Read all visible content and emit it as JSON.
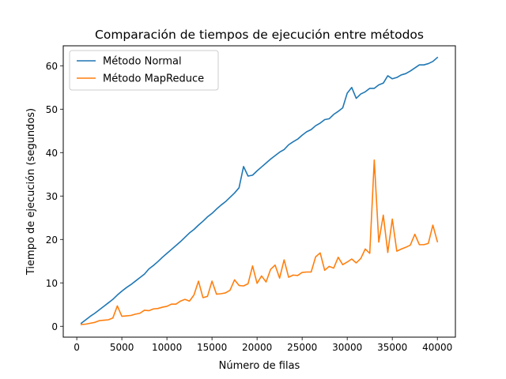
{
  "chart_data": {
    "type": "line",
    "title": "Comparación de tiempos de ejecución entre métodos",
    "xlabel": "Número de filas",
    "ylabel": "Tiempo de ejecución (segundos)",
    "xlim": [
      -1500,
      42000
    ],
    "ylim": [
      -2.5,
      64.6
    ],
    "xticks": [
      0,
      5000,
      10000,
      15000,
      20000,
      25000,
      30000,
      35000,
      40000
    ],
    "yticks": [
      0,
      10,
      20,
      30,
      40,
      50,
      60
    ],
    "legend_position": "upper left",
    "grid": false,
    "series": [
      {
        "name": "Método Normal",
        "color": "#1f77b4",
        "points": [
          [
            500,
            0.7
          ],
          [
            1000,
            1.5
          ],
          [
            1500,
            2.3
          ],
          [
            2000,
            3.0
          ],
          [
            2500,
            3.8
          ],
          [
            3000,
            4.6
          ],
          [
            3500,
            5.4
          ],
          [
            4000,
            6.2
          ],
          [
            4500,
            7.2
          ],
          [
            5000,
            8.1
          ],
          [
            5500,
            8.9
          ],
          [
            6000,
            9.6
          ],
          [
            6500,
            10.4
          ],
          [
            7000,
            11.2
          ],
          [
            7500,
            12.0
          ],
          [
            8000,
            13.2
          ],
          [
            8500,
            14.0
          ],
          [
            9000,
            14.9
          ],
          [
            9500,
            15.9
          ],
          [
            10000,
            16.8
          ],
          [
            10500,
            17.7
          ],
          [
            11000,
            18.6
          ],
          [
            11500,
            19.5
          ],
          [
            12000,
            20.5
          ],
          [
            12500,
            21.5
          ],
          [
            13000,
            22.3
          ],
          [
            13500,
            23.3
          ],
          [
            14000,
            24.2
          ],
          [
            14500,
            25.2
          ],
          [
            15000,
            26.0
          ],
          [
            15500,
            27.0
          ],
          [
            16000,
            27.9
          ],
          [
            16500,
            28.7
          ],
          [
            17000,
            29.7
          ],
          [
            17500,
            30.7
          ],
          [
            18000,
            31.9
          ],
          [
            18500,
            36.8
          ],
          [
            19000,
            34.6
          ],
          [
            19500,
            34.8
          ],
          [
            20000,
            35.8
          ],
          [
            20500,
            36.7
          ],
          [
            21000,
            37.6
          ],
          [
            21500,
            38.5
          ],
          [
            22000,
            39.3
          ],
          [
            22500,
            40.1
          ],
          [
            23000,
            40.7
          ],
          [
            23500,
            41.8
          ],
          [
            24000,
            42.5
          ],
          [
            24500,
            43.1
          ],
          [
            25000,
            44.0
          ],
          [
            25500,
            44.8
          ],
          [
            26000,
            45.3
          ],
          [
            26500,
            46.2
          ],
          [
            27000,
            46.8
          ],
          [
            27500,
            47.6
          ],
          [
            28000,
            47.8
          ],
          [
            28500,
            48.8
          ],
          [
            29000,
            49.5
          ],
          [
            29500,
            50.3
          ],
          [
            30000,
            53.7
          ],
          [
            30500,
            55.0
          ],
          [
            31000,
            52.5
          ],
          [
            31500,
            53.5
          ],
          [
            32000,
            54.0
          ],
          [
            32500,
            54.8
          ],
          [
            33000,
            54.8
          ],
          [
            33500,
            55.6
          ],
          [
            34000,
            56.0
          ],
          [
            34500,
            57.7
          ],
          [
            35000,
            57.0
          ],
          [
            35500,
            57.3
          ],
          [
            36000,
            57.9
          ],
          [
            36500,
            58.2
          ],
          [
            37000,
            58.8
          ],
          [
            37500,
            59.5
          ],
          [
            38000,
            60.2
          ],
          [
            38500,
            60.2
          ],
          [
            39000,
            60.5
          ],
          [
            39500,
            61.0
          ],
          [
            40000,
            61.9
          ]
        ]
      },
      {
        "name": "Método MapReduce",
        "color": "#ff7f0e",
        "points": [
          [
            500,
            0.4
          ],
          [
            1000,
            0.5
          ],
          [
            1500,
            0.7
          ],
          [
            2000,
            0.9
          ],
          [
            2500,
            1.3
          ],
          [
            3000,
            1.4
          ],
          [
            3500,
            1.5
          ],
          [
            4000,
            1.9
          ],
          [
            4500,
            4.7
          ],
          [
            5000,
            2.3
          ],
          [
            5500,
            2.4
          ],
          [
            6000,
            2.5
          ],
          [
            6500,
            2.8
          ],
          [
            7000,
            3.0
          ],
          [
            7500,
            3.7
          ],
          [
            8000,
            3.6
          ],
          [
            8500,
            4.0
          ],
          [
            9000,
            4.1
          ],
          [
            9500,
            4.4
          ],
          [
            10000,
            4.6
          ],
          [
            10500,
            5.1
          ],
          [
            11000,
            5.1
          ],
          [
            11500,
            5.8
          ],
          [
            12000,
            6.2
          ],
          [
            12500,
            5.8
          ],
          [
            13000,
            7.2
          ],
          [
            13500,
            10.4
          ],
          [
            14000,
            6.6
          ],
          [
            14500,
            6.9
          ],
          [
            15000,
            10.4
          ],
          [
            15500,
            7.4
          ],
          [
            16000,
            7.5
          ],
          [
            16500,
            7.7
          ],
          [
            17000,
            8.3
          ],
          [
            17500,
            10.7
          ],
          [
            18000,
            9.4
          ],
          [
            18500,
            9.3
          ],
          [
            19000,
            9.8
          ],
          [
            19500,
            13.9
          ],
          [
            20000,
            9.9
          ],
          [
            20500,
            11.6
          ],
          [
            21000,
            10.2
          ],
          [
            21500,
            13.1
          ],
          [
            22000,
            14.1
          ],
          [
            22500,
            11.1
          ],
          [
            23000,
            15.3
          ],
          [
            23500,
            11.3
          ],
          [
            24000,
            11.8
          ],
          [
            24500,
            11.7
          ],
          [
            25000,
            12.4
          ],
          [
            25500,
            12.5
          ],
          [
            26000,
            12.5
          ],
          [
            26500,
            16.0
          ],
          [
            27000,
            16.9
          ],
          [
            27500,
            12.9
          ],
          [
            28000,
            13.8
          ],
          [
            28500,
            13.4
          ],
          [
            29000,
            15.9
          ],
          [
            29500,
            14.2
          ],
          [
            30000,
            14.8
          ],
          [
            30500,
            15.5
          ],
          [
            31000,
            14.6
          ],
          [
            31500,
            15.6
          ],
          [
            32000,
            17.8
          ],
          [
            32500,
            16.8
          ],
          [
            33000,
            38.3
          ],
          [
            33500,
            19.4
          ],
          [
            34000,
            25.6
          ],
          [
            34500,
            17.0
          ],
          [
            35000,
            24.7
          ],
          [
            35500,
            17.3
          ],
          [
            36000,
            17.8
          ],
          [
            36500,
            18.2
          ],
          [
            37000,
            18.7
          ],
          [
            37500,
            21.2
          ],
          [
            38000,
            18.8
          ],
          [
            38500,
            18.8
          ],
          [
            39000,
            19.1
          ],
          [
            39500,
            23.3
          ],
          [
            40000,
            19.5
          ]
        ]
      }
    ]
  }
}
